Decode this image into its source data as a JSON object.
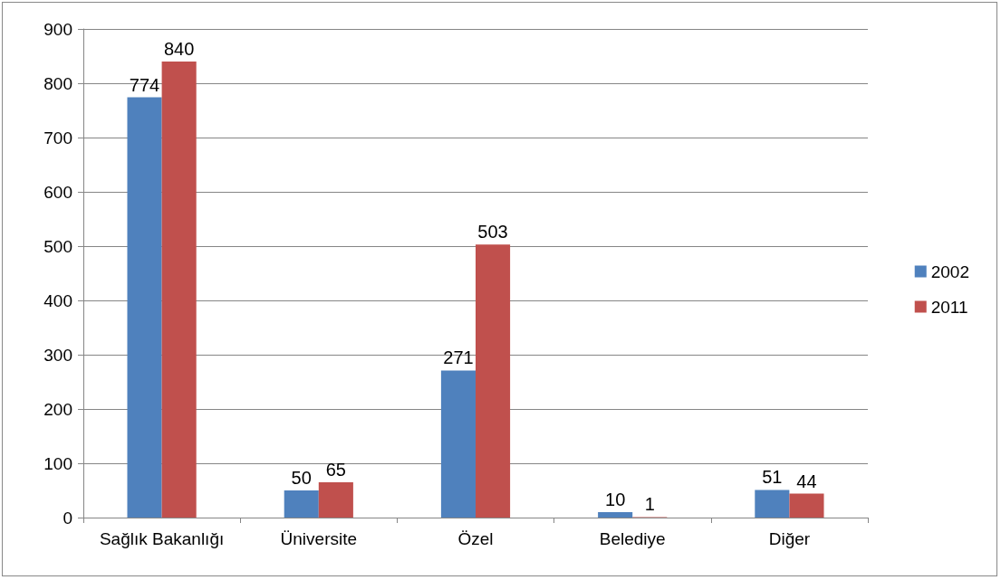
{
  "chart_data": {
    "type": "bar",
    "categories": [
      "Sağlık Bakanlığı",
      "Üniversite",
      "Özel",
      "Belediye",
      "Diğer"
    ],
    "series": [
      {
        "name": "2002",
        "color": "#4f81bd",
        "values": [
          774,
          50,
          271,
          10,
          51
        ]
      },
      {
        "name": "2011",
        "color": "#c0504d",
        "values": [
          840,
          65,
          503,
          1,
          44
        ]
      }
    ],
    "ylim": [
      0,
      900
    ],
    "yticks": [
      0,
      100,
      200,
      300,
      400,
      500,
      600,
      700,
      800,
      900
    ],
    "grid": "y",
    "legend": "right",
    "data_labels": true
  }
}
